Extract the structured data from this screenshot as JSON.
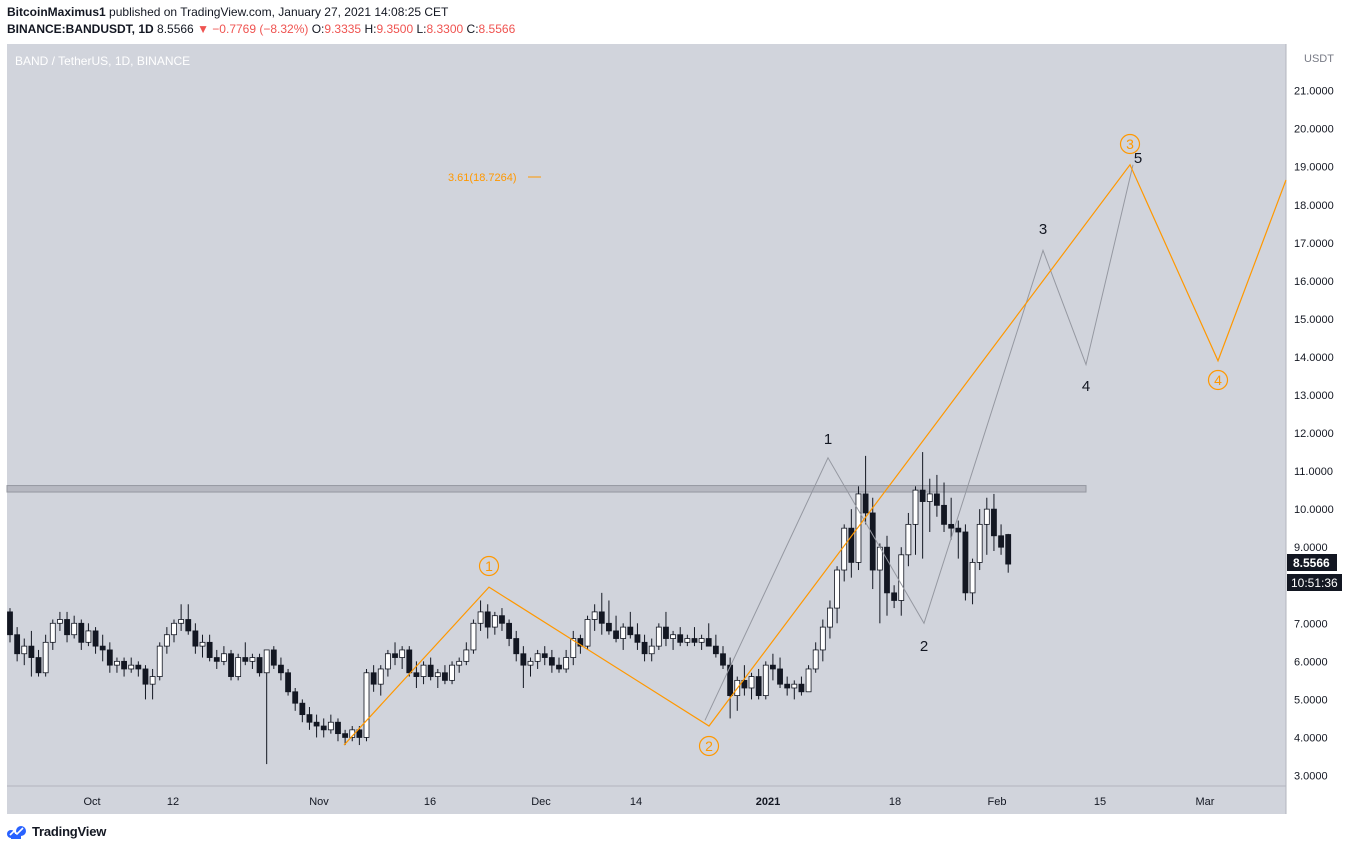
{
  "header": {
    "user": "BitcoinMaximus1",
    "published_text": "published on TradingView.com, January 27, 2021 14:08:25 CET",
    "symbol": "BINANCE:BANDUSDT, 1D",
    "last": "8.5566",
    "change_arrow": "▼",
    "change": "−0.7769 (−8.32%)",
    "o_label": "O:",
    "o_value": "9.3335",
    "h_label": "H:",
    "h_value": "9.3500",
    "l_label": "L:",
    "l_value": "8.3300",
    "c_label": "C:",
    "c_value": "8.5566"
  },
  "chart_title": "BAND / TetherUS, 1D, BINANCE",
  "currency": "USDT",
  "price_badge": "8.5566",
  "countdown_badge": "10:51:36",
  "fib_label": "3.61(18.7264)",
  "brand": "TradingView",
  "colors": {
    "background": "#d1d4dc",
    "up_body": "#ffffff",
    "down_body": "#131722",
    "orange": "#ff9800",
    "grey_wave": "#9598a1",
    "resistance_fill": "#b2b5be"
  },
  "chart_data": {
    "type": "candlestick",
    "ylim": [
      2.7,
      22
    ],
    "y_ticks": [
      "3.0000",
      "4.0000",
      "5.0000",
      "6.0000",
      "7.0000",
      "8.0000",
      "9.0000",
      "10.0000",
      "11.0000",
      "12.0000",
      "13.0000",
      "14.0000",
      "15.0000",
      "16.0000",
      "17.0000",
      "18.0000",
      "19.0000",
      "20.0000",
      "21.0000"
    ],
    "x_tick_labels": [
      "Oct",
      "12",
      "Nov",
      "16",
      "Dec",
      "14",
      "2021",
      "18",
      "Feb",
      "15",
      "Mar"
    ],
    "candles": [
      [
        7.3,
        7.4,
        6.5,
        6.7
      ],
      [
        6.7,
        6.9,
        6.0,
        6.2
      ],
      [
        6.2,
        6.6,
        5.9,
        6.4
      ],
      [
        6.4,
        6.8,
        5.6,
        6.1
      ],
      [
        6.1,
        6.3,
        5.6,
        5.7
      ],
      [
        5.7,
        6.7,
        5.6,
        6.5
      ],
      [
        6.5,
        7.1,
        6.3,
        7.0
      ],
      [
        7.0,
        7.3,
        6.8,
        7.1
      ],
      [
        7.1,
        7.3,
        6.5,
        6.7
      ],
      [
        6.7,
        7.2,
        6.6,
        7.0
      ],
      [
        7.0,
        7.1,
        6.3,
        6.5
      ],
      [
        6.5,
        7.0,
        6.4,
        6.8
      ],
      [
        6.8,
        6.9,
        6.2,
        6.4
      ],
      [
        6.4,
        6.7,
        6.0,
        6.3
      ],
      [
        6.3,
        6.5,
        5.7,
        5.9
      ],
      [
        5.9,
        6.1,
        5.7,
        6.0
      ],
      [
        6.0,
        6.1,
        5.6,
        5.8
      ],
      [
        5.8,
        6.1,
        5.7,
        5.9
      ],
      [
        5.9,
        6.0,
        5.6,
        5.8
      ],
      [
        5.8,
        5.9,
        5.0,
        5.4
      ],
      [
        5.4,
        5.8,
        5.0,
        5.6
      ],
      [
        5.6,
        6.5,
        5.5,
        6.4
      ],
      [
        6.4,
        6.9,
        6.2,
        6.7
      ],
      [
        6.7,
        7.1,
        6.5,
        7.0
      ],
      [
        7.0,
        7.5,
        6.8,
        7.1
      ],
      [
        7.1,
        7.5,
        6.7,
        6.8
      ],
      [
        6.8,
        7.0,
        6.2,
        6.4
      ],
      [
        6.4,
        6.7,
        6.1,
        6.5
      ],
      [
        6.5,
        6.7,
        6.0,
        6.1
      ],
      [
        6.1,
        6.3,
        5.8,
        6.0
      ],
      [
        6.0,
        6.4,
        5.9,
        6.2
      ],
      [
        6.2,
        6.3,
        5.5,
        5.6
      ],
      [
        5.6,
        6.2,
        5.5,
        6.1
      ],
      [
        6.1,
        6.5,
        5.9,
        6.0
      ],
      [
        6.0,
        6.2,
        5.8,
        6.1
      ],
      [
        6.1,
        6.2,
        5.6,
        5.7
      ],
      [
        5.7,
        6.3,
        3.3,
        6.3
      ],
      [
        6.3,
        6.4,
        5.8,
        5.9
      ],
      [
        5.9,
        6.1,
        5.5,
        5.7
      ],
      [
        5.7,
        5.8,
        5.1,
        5.2
      ],
      [
        5.2,
        5.3,
        4.7,
        4.9
      ],
      [
        4.9,
        5.0,
        4.4,
        4.6
      ],
      [
        4.6,
        4.8,
        4.2,
        4.4
      ],
      [
        4.4,
        4.6,
        4.0,
        4.3
      ],
      [
        4.3,
        4.5,
        4.0,
        4.2
      ],
      [
        4.2,
        4.6,
        4.1,
        4.4
      ],
      [
        4.4,
        4.5,
        3.9,
        4.1
      ],
      [
        4.1,
        4.2,
        3.8,
        4.0
      ],
      [
        4.0,
        4.3,
        3.9,
        4.2
      ],
      [
        4.2,
        4.3,
        3.8,
        4.0
      ],
      [
        4.0,
        5.8,
        3.9,
        5.7
      ],
      [
        5.7,
        5.9,
        5.2,
        5.4
      ],
      [
        5.4,
        5.9,
        5.1,
        5.8
      ],
      [
        5.8,
        6.3,
        5.6,
        6.2
      ],
      [
        6.2,
        6.5,
        5.9,
        6.1
      ],
      [
        6.1,
        6.4,
        5.8,
        6.3
      ],
      [
        6.3,
        6.4,
        5.6,
        5.7
      ],
      [
        5.7,
        6.0,
        5.3,
        5.6
      ],
      [
        5.6,
        6.0,
        5.4,
        5.9
      ],
      [
        5.9,
        6.1,
        5.5,
        5.6
      ],
      [
        5.6,
        5.8,
        5.3,
        5.7
      ],
      [
        5.7,
        5.9,
        5.4,
        5.5
      ],
      [
        5.5,
        6.0,
        5.4,
        5.9
      ],
      [
        5.9,
        6.1,
        5.7,
        6.0
      ],
      [
        6.0,
        6.5,
        5.9,
        6.3
      ],
      [
        6.3,
        7.1,
        6.2,
        7.0
      ],
      [
        7.0,
        7.6,
        6.8,
        7.3
      ],
      [
        7.3,
        7.5,
        6.6,
        6.9
      ],
      [
        6.9,
        7.3,
        6.7,
        7.2
      ],
      [
        7.2,
        7.4,
        6.8,
        7.0
      ],
      [
        7.0,
        7.1,
        6.4,
        6.6
      ],
      [
        6.6,
        6.8,
        6.0,
        6.2
      ],
      [
        6.2,
        6.4,
        5.3,
        5.9
      ],
      [
        5.9,
        6.1,
        5.6,
        6.0
      ],
      [
        6.0,
        6.3,
        5.8,
        6.2
      ],
      [
        6.2,
        6.4,
        5.9,
        6.1
      ],
      [
        6.1,
        6.3,
        5.7,
        5.9
      ],
      [
        5.9,
        6.1,
        5.7,
        5.8
      ],
      [
        5.8,
        6.3,
        5.7,
        6.1
      ],
      [
        6.1,
        6.8,
        5.9,
        6.6
      ],
      [
        6.6,
        6.7,
        6.2,
        6.4
      ],
      [
        6.4,
        7.2,
        6.3,
        7.1
      ],
      [
        7.1,
        7.5,
        6.8,
        7.3
      ],
      [
        7.3,
        7.8,
        6.7,
        7.0
      ],
      [
        7.0,
        7.6,
        6.7,
        6.8
      ],
      [
        6.8,
        7.2,
        6.5,
        6.6
      ],
      [
        6.6,
        7.0,
        6.3,
        6.9
      ],
      [
        6.9,
        7.3,
        6.6,
        6.7
      ],
      [
        6.7,
        7.0,
        6.3,
        6.5
      ],
      [
        6.5,
        6.7,
        6.0,
        6.2
      ],
      [
        6.2,
        6.6,
        6.0,
        6.4
      ],
      [
        6.4,
        7.0,
        6.3,
        6.9
      ],
      [
        6.9,
        7.3,
        6.4,
        6.6
      ],
      [
        6.6,
        6.8,
        6.3,
        6.7
      ],
      [
        6.7,
        6.9,
        6.4,
        6.5
      ],
      [
        6.5,
        6.7,
        6.4,
        6.6
      ],
      [
        6.6,
        6.9,
        6.4,
        6.5
      ],
      [
        6.5,
        6.7,
        6.3,
        6.6
      ],
      [
        6.6,
        7.0,
        6.4,
        6.4
      ],
      [
        6.4,
        6.7,
        6.1,
        6.2
      ],
      [
        6.2,
        6.4,
        5.8,
        5.9
      ],
      [
        5.9,
        6.1,
        4.5,
        5.1
      ],
      [
        5.1,
        5.6,
        4.7,
        5.5
      ],
      [
        5.5,
        5.9,
        5.1,
        5.3
      ],
      [
        5.3,
        5.7,
        5.0,
        5.6
      ],
      [
        5.6,
        5.8,
        5.0,
        5.1
      ],
      [
        5.1,
        6.0,
        5.0,
        5.9
      ],
      [
        5.9,
        6.2,
        5.5,
        5.8
      ],
      [
        5.8,
        6.1,
        5.3,
        5.4
      ],
      [
        5.4,
        5.6,
        5.1,
        5.3
      ],
      [
        5.3,
        5.5,
        5.0,
        5.4
      ],
      [
        5.4,
        5.6,
        5.1,
        5.2
      ],
      [
        5.2,
        5.9,
        5.2,
        5.8
      ],
      [
        5.8,
        6.5,
        5.7,
        6.3
      ],
      [
        6.3,
        7.1,
        6.0,
        6.9
      ],
      [
        6.9,
        7.6,
        6.6,
        7.4
      ],
      [
        7.4,
        8.5,
        7.0,
        8.4
      ],
      [
        8.4,
        9.6,
        8.1,
        9.5
      ],
      [
        9.5,
        10.0,
        8.2,
        8.6
      ],
      [
        8.6,
        10.6,
        8.4,
        10.4
      ],
      [
        10.4,
        11.4,
        9.6,
        9.9
      ],
      [
        9.9,
        10.3,
        7.9,
        8.4
      ],
      [
        8.4,
        9.1,
        7.0,
        9.0
      ],
      [
        9.0,
        9.3,
        7.2,
        7.8
      ],
      [
        7.8,
        8.0,
        7.4,
        7.6
      ],
      [
        7.6,
        9.0,
        7.2,
        8.8
      ],
      [
        8.8,
        9.9,
        8.5,
        9.6
      ],
      [
        9.6,
        10.6,
        8.8,
        10.5
      ],
      [
        10.5,
        11.5,
        8.7,
        10.2
      ],
      [
        10.2,
        10.8,
        9.4,
        10.4
      ],
      [
        10.4,
        10.9,
        9.8,
        10.1
      ],
      [
        10.1,
        10.7,
        9.4,
        9.6
      ],
      [
        9.6,
        10.3,
        9.2,
        9.5
      ],
      [
        9.5,
        9.7,
        8.7,
        9.4
      ],
      [
        9.4,
        9.6,
        7.6,
        7.8
      ],
      [
        7.8,
        8.7,
        7.5,
        8.6
      ],
      [
        8.6,
        10.0,
        8.4,
        9.6
      ],
      [
        9.6,
        10.3,
        8.8,
        10.0
      ],
      [
        10.0,
        10.4,
        8.9,
        9.3
      ],
      [
        9.3,
        9.6,
        8.8,
        9.0
      ],
      [
        9.3335,
        9.35,
        8.33,
        8.5566
      ]
    ],
    "resistance_zone": [
      10.45,
      10.62
    ],
    "orange_wave": {
      "points": [
        [
          3.8,
          "start"
        ],
        [
          7.95,
          "1"
        ],
        [
          4.3,
          "2"
        ],
        [
          19.05,
          "3"
        ],
        [
          13.9,
          "4"
        ],
        [
          18.65,
          "end"
        ]
      ],
      "labels": [
        "1",
        "2",
        "3",
        "4"
      ]
    },
    "grey_wave": {
      "points": [
        [
          4.45,
          "start"
        ],
        [
          11.35,
          "1"
        ],
        [
          7.0,
          "2"
        ],
        [
          16.8,
          "3"
        ],
        [
          13.8,
          "4"
        ],
        [
          19.05,
          "5"
        ]
      ],
      "labels": [
        "1",
        "2",
        "3",
        "4",
        "5"
      ]
    },
    "fib_level": 18.7264
  }
}
